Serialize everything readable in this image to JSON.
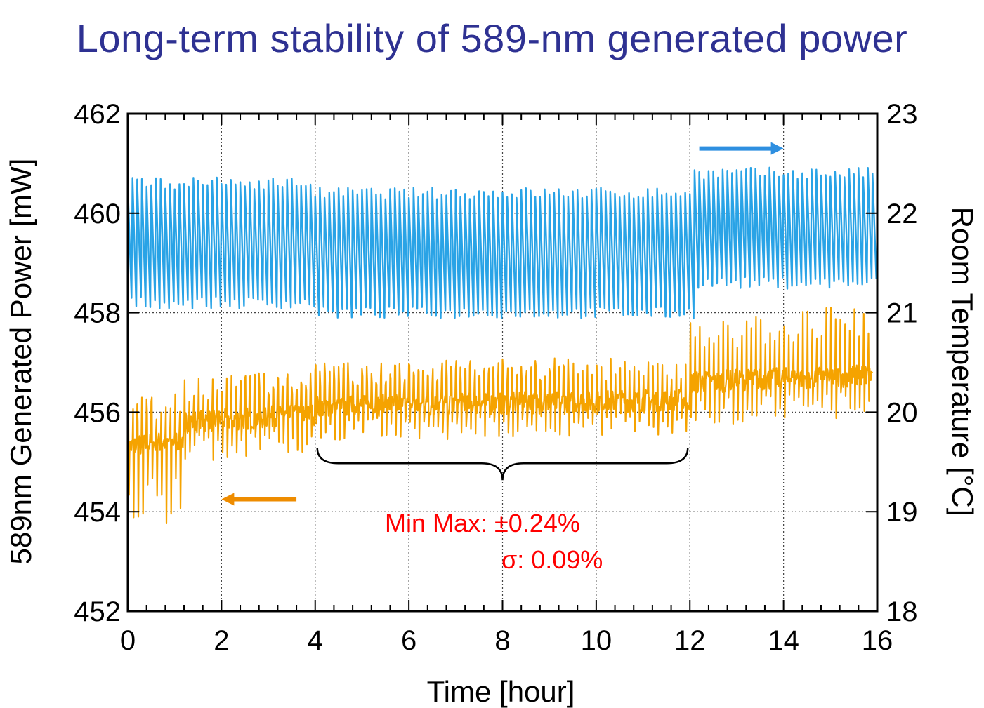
{
  "title": "Long-term stability of 589-nm generated power",
  "chart_data": {
    "type": "line",
    "xlabel": "Time [hour]",
    "ylabel_left": "589nm Generated Power [mW]",
    "ylabel_right": "Room Temperature [°C]",
    "xlim": [
      0,
      16
    ],
    "ylim_left": [
      452,
      462
    ],
    "ylim_right": [
      18,
      23
    ],
    "x_ticks": [
      0,
      2,
      4,
      6,
      8,
      10,
      12,
      14,
      16
    ],
    "y_left_ticks": [
      452,
      454,
      456,
      458,
      460,
      462
    ],
    "y_right_ticks": [
      18,
      19,
      20,
      21,
      22,
      23
    ],
    "grid": true,
    "series": [
      {
        "axis": "left",
        "color": "#f5a300",
        "segments": [
          {
            "x_start": 0.0,
            "x_end": 1.2,
            "baseline": 455.3,
            "amp_low": 1.8,
            "amp_high": 1.0
          },
          {
            "x_start": 1.2,
            "x_end": 4.0,
            "baseline": 455.8,
            "amp_low": 0.8,
            "amp_high": 0.9
          },
          {
            "x_start": 4.0,
            "x_end": 12.0,
            "baseline": 456.1,
            "amp_low": 0.7,
            "amp_high": 0.9
          },
          {
            "x_start": 12.0,
            "x_end": 16.0,
            "baseline": 456.6,
            "amp_low": 0.9,
            "amp_high": 1.4
          }
        ]
      },
      {
        "axis": "right",
        "color": "#29a3e6",
        "oscillation_period_hours": 0.2,
        "segments": [
          {
            "x_start": 0.0,
            "x_end": 4.0,
            "low": 21.1,
            "high": 22.3
          },
          {
            "x_start": 4.0,
            "x_end": 12.0,
            "low": 21.0,
            "high": 22.2
          },
          {
            "x_start": 12.0,
            "x_end": 16.0,
            "low": 21.3,
            "high": 22.4
          }
        ]
      }
    ],
    "arrows": [
      {
        "points_to": "right",
        "color": "#2e8fe0",
        "x_from": 12.2,
        "x_to": 14.0,
        "y_right": 22.65
      },
      {
        "points_to": "left",
        "color": "#ee8c00",
        "x_from": 3.6,
        "x_to": 2.0,
        "y_left": 454.25
      }
    ],
    "bracket": {
      "x_start": 4.0,
      "x_end": 12.0,
      "y_left": 455.0
    },
    "annotations": [
      "Min Max: ±0.24%",
      "σ: 0.09%"
    ]
  }
}
